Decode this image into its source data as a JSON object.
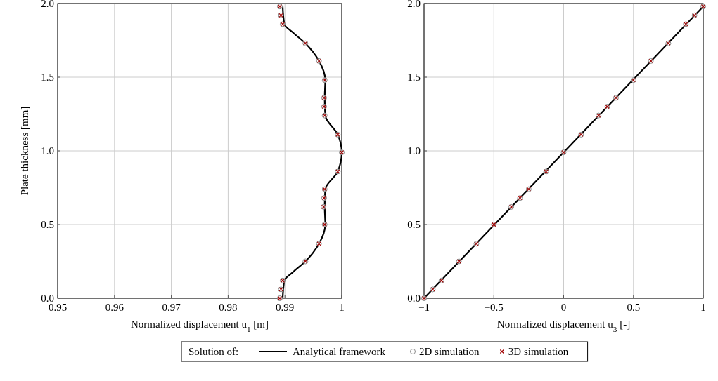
{
  "chart_data": [
    {
      "type": "line",
      "xlabel": "Normalized displacement u$_{1}$ [m]",
      "ylabel": "Plate thickness [mm]",
      "legend_title": "Solution of:",
      "legend": "bottom",
      "grid": true,
      "xlim": [
        0.95,
        1
      ],
      "xticks": [
        0.95,
        0.96,
        0.97,
        0.98,
        0.99,
        1
      ],
      "ylim": [
        0,
        2
      ],
      "yticks": [
        {
          "value": 0,
          "label": "0.0"
        },
        {
          "value": 0.5,
          "label": "0.5"
        },
        {
          "value": 1,
          "label": "1.0"
        },
        {
          "value": 1.5,
          "label": "1.5"
        },
        {
          "value": 2,
          "label": "2.0"
        }
      ],
      "series": [
        {
          "name": "Analytical framework",
          "line_style": "solid",
          "color": "#000000",
          "x": [
            0.9896,
            0.9899,
            0.9915,
            0.9936,
            0.996,
            0.9971,
            0.997,
            0.9971,
            0.9993,
            1.0,
            0.9993,
            0.9971,
            0.997,
            0.9971,
            0.996,
            0.9936,
            0.9915,
            0.9899,
            0.9896
          ],
          "values": [
            0,
            0.12,
            0.18,
            0.25,
            0.37,
            0.5,
            0.62,
            0.74,
            0.86,
            0.99,
            1.11,
            1.24,
            1.36,
            1.48,
            1.61,
            1.73,
            1.8,
            1.86,
            1.98
          ]
        },
        {
          "name": "2D simulation",
          "type": "scatter",
          "marker": "circle",
          "color": "#888888",
          "x": [
            0.9891,
            0.9893,
            0.9896,
            0.9936,
            0.996,
            0.997,
            0.9968,
            0.9969,
            0.997,
            0.9993,
            1.0,
            0.9993,
            0.997,
            0.9969,
            0.9969,
            0.997,
            0.996,
            0.9936,
            0.9896,
            0.9893,
            0.9891
          ],
          "values": [
            0,
            0.06,
            0.12,
            0.25,
            0.37,
            0.5,
            0.62,
            0.68,
            0.74,
            0.86,
            0.99,
            1.11,
            1.24,
            1.3,
            1.36,
            1.48,
            1.61,
            1.73,
            1.86,
            1.92,
            1.98
          ]
        },
        {
          "name": "3D simulation",
          "type": "scatter",
          "marker": "cross",
          "color": "#a00000",
          "x": [
            0.9891,
            0.9893,
            0.9896,
            0.9936,
            0.996,
            0.997,
            0.9968,
            0.9969,
            0.997,
            0.9993,
            1.0,
            0.9993,
            0.997,
            0.9969,
            0.9969,
            0.997,
            0.996,
            0.9936,
            0.9896,
            0.9893,
            0.9891
          ],
          "values": [
            0,
            0.06,
            0.12,
            0.25,
            0.37,
            0.5,
            0.62,
            0.68,
            0.74,
            0.86,
            0.99,
            1.11,
            1.24,
            1.3,
            1.36,
            1.48,
            1.61,
            1.73,
            1.86,
            1.92,
            1.98
          ]
        }
      ]
    },
    {
      "type": "line",
      "xlabel": "Normalized displacement u$_{3}$ [-]",
      "grid": true,
      "xlim": [
        -1,
        1
      ],
      "xticks": [
        {
          "value": -1,
          "label": "−1"
        },
        {
          "value": -0.5,
          "label": "−0.5"
        },
        0,
        0.5,
        1
      ],
      "ylim": [
        0,
        2
      ],
      "yticks": [
        {
          "value": 0,
          "label": "0.0"
        },
        {
          "value": 0.5,
          "label": "0.5"
        },
        {
          "value": 1,
          "label": "1.0"
        },
        {
          "value": 1.5,
          "label": "1.5"
        },
        {
          "value": 2,
          "label": "2.0"
        }
      ],
      "series": [
        {
          "line_style": "solid",
          "color": "#000000",
          "x": [
            -1,
            1
          ],
          "values": [
            0,
            1.98
          ]
        },
        {
          "type": "scatter",
          "marker": "circle",
          "color": "#888888",
          "x": [
            -1,
            -0.9375,
            -0.875,
            -0.75,
            -0.625,
            -0.5,
            -0.375,
            -0.3125,
            -0.25,
            -0.125,
            0,
            0.125,
            0.25,
            0.3125,
            0.375,
            0.5,
            0.625,
            0.75,
            0.875,
            0.9375,
            1
          ],
          "values": [
            0,
            0.06,
            0.12,
            0.25,
            0.37,
            0.5,
            0.62,
            0.68,
            0.74,
            0.86,
            0.99,
            1.11,
            1.24,
            1.3,
            1.36,
            1.48,
            1.61,
            1.73,
            1.86,
            1.92,
            1.98
          ]
        },
        {
          "type": "scatter",
          "marker": "cross",
          "color": "#a00000",
          "x": [
            -1,
            -0.9375,
            -0.875,
            -0.75,
            -0.625,
            -0.5,
            -0.375,
            -0.3125,
            -0.25,
            -0.125,
            0,
            0.125,
            0.25,
            0.3125,
            0.375,
            0.5,
            0.625,
            0.75,
            0.875,
            0.9375,
            1
          ],
          "values": [
            0,
            0.06,
            0.12,
            0.25,
            0.37,
            0.5,
            0.62,
            0.68,
            0.74,
            0.86,
            0.99,
            1.11,
            1.24,
            1.3,
            1.36,
            1.48,
            1.61,
            1.73,
            1.86,
            1.92,
            1.98
          ]
        }
      ]
    }
  ]
}
